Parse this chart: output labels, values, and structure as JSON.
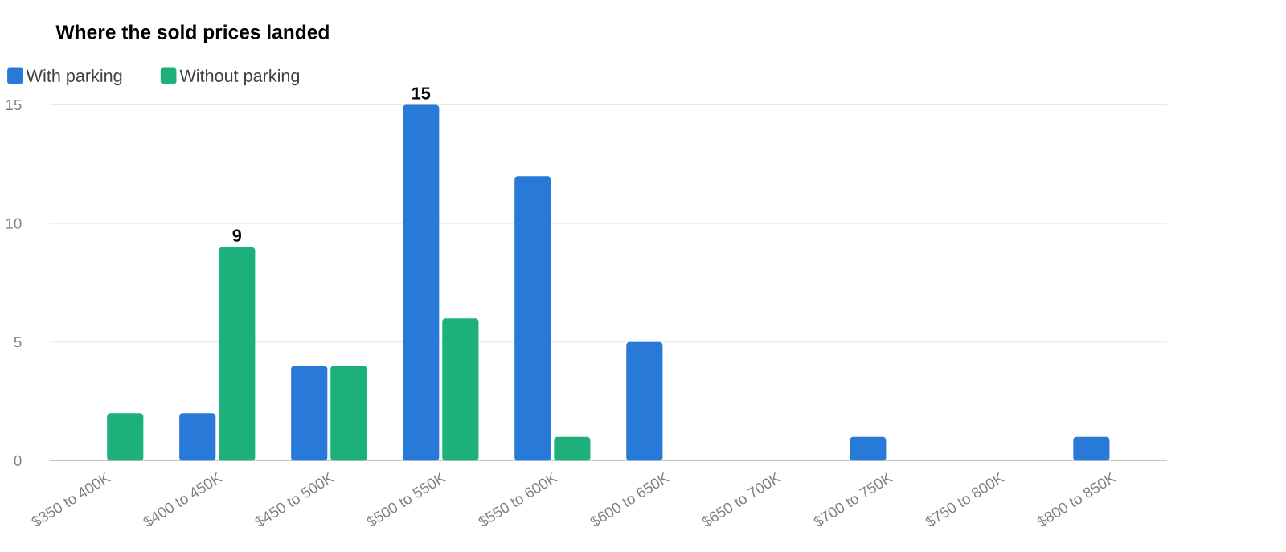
{
  "chart_data": {
    "type": "bar",
    "title": "Where the sold prices landed",
    "categories": [
      "$350 to 400K",
      "$400 to 450K",
      "$450 to 500K",
      "$500 to 550K",
      "$550 to 600K",
      "$600 to 650K",
      "$650 to 700K",
      "$700 to 750K",
      "$750 to 800K",
      "$800 to 850K"
    ],
    "series": [
      {
        "name": "With parking",
        "color": "#2979d9",
        "values": [
          0,
          2,
          4,
          15,
          12,
          5,
          0,
          1,
          0,
          1
        ],
        "value_labels": [
          null,
          null,
          null,
          "15",
          null,
          null,
          null,
          null,
          null,
          null
        ]
      },
      {
        "name": "Without parking",
        "color": "#1db07a",
        "values": [
          2,
          9,
          4,
          6,
          1,
          0,
          0,
          0,
          0,
          0
        ],
        "value_labels": [
          null,
          "9",
          null,
          null,
          null,
          null,
          null,
          null,
          null,
          null
        ]
      }
    ],
    "ylim": [
      0,
      15
    ],
    "yticks": [
      0,
      5,
      10,
      15
    ],
    "grid": "y",
    "legend": "top left"
  }
}
